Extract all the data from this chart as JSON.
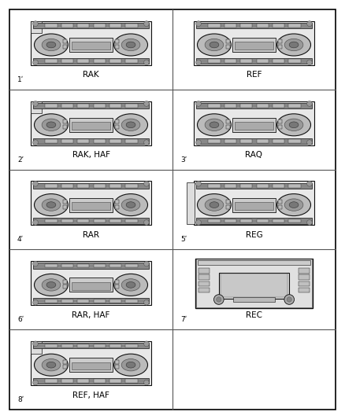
{
  "background_color": "#ffffff",
  "border_color": "#000000",
  "grid_color": "#555555",
  "fig_width": 4.38,
  "fig_height": 5.33,
  "cells": [
    {
      "row": 0,
      "col": 0,
      "label": "RAK",
      "num": "1",
      "style": "rak"
    },
    {
      "row": 0,
      "col": 1,
      "label": "REF",
      "num": "",
      "style": "ref"
    },
    {
      "row": 1,
      "col": 0,
      "label": "RAK, HAF",
      "num": "2",
      "style": "rak_haf"
    },
    {
      "row": 1,
      "col": 1,
      "label": "RAQ",
      "num": "3",
      "style": "raq"
    },
    {
      "row": 2,
      "col": 0,
      "label": "RAR",
      "num": "4",
      "style": "rar"
    },
    {
      "row": 2,
      "col": 1,
      "label": "REG",
      "num": "5",
      "style": "reg"
    },
    {
      "row": 3,
      "col": 0,
      "label": "RAR, HAF",
      "num": "6",
      "style": "rar_haf"
    },
    {
      "row": 3,
      "col": 1,
      "label": "REC",
      "num": "7",
      "style": "rec"
    },
    {
      "row": 4,
      "col": 0,
      "label": "REF, HAF",
      "num": "8",
      "style": "ref_haf"
    },
    {
      "row": 4,
      "col": 1,
      "label": "",
      "num": "",
      "style": "none"
    }
  ],
  "n_rows": 5,
  "n_cols": 2,
  "text_color": "#000000",
  "radio_edge": "#111111",
  "radio_face": "#f5f5f5",
  "radio_dark": "#888888",
  "radio_mid": "#cccccc"
}
